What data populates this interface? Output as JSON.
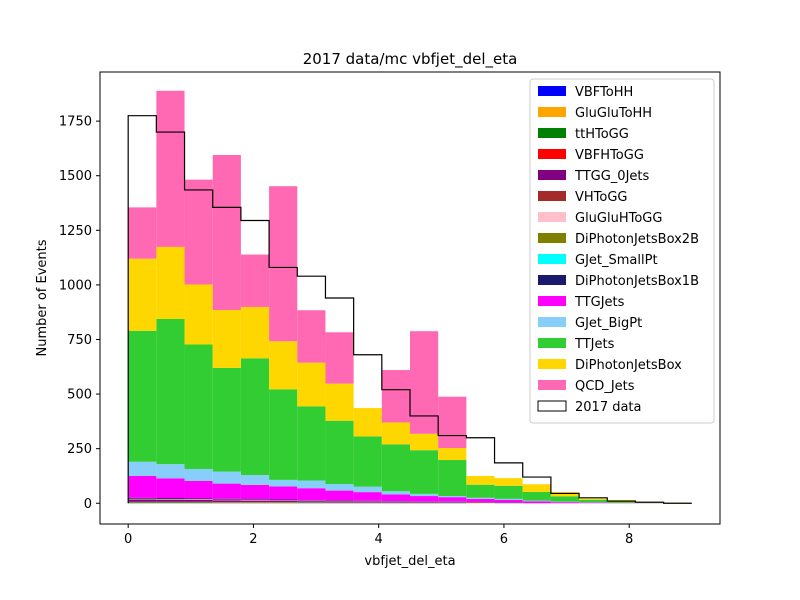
{
  "chart_data": {
    "type": "bar",
    "stacked": true,
    "title": "2017 data/mc vbfjet_del_eta",
    "xlabel": "vbfjet_del_eta",
    "ylabel": "Number of Events",
    "xlim": [
      -0.45,
      9.45
    ],
    "ylim": [
      -95,
      1975
    ],
    "xticks": [
      0,
      2,
      4,
      6,
      8
    ],
    "yticks": [
      0,
      250,
      500,
      750,
      1000,
      1250,
      1500,
      1750
    ],
    "bin_edges": [
      0.0,
      0.45,
      0.9,
      1.35,
      1.8,
      2.25,
      2.7,
      3.15,
      3.6,
      4.05,
      4.5,
      4.95,
      5.4,
      5.85,
      6.3,
      6.75,
      7.2,
      7.65,
      8.1,
      8.55,
      9.0
    ],
    "legend_position": "upper right",
    "series": [
      {
        "name": "VBFToHH",
        "color": "#0000ff",
        "values": [
          1,
          1,
          1,
          1,
          1,
          1,
          1,
          1,
          1,
          1,
          1,
          1,
          0,
          0,
          0,
          0,
          0,
          0,
          0,
          0
        ]
      },
      {
        "name": "GluGluToHH",
        "color": "#ffa500",
        "values": [
          2,
          2,
          2,
          2,
          2,
          2,
          1,
          1,
          1,
          1,
          1,
          1,
          1,
          0,
          0,
          0,
          0,
          0,
          0,
          0
        ]
      },
      {
        "name": "ttHToGG",
        "color": "#008000",
        "values": [
          3,
          3,
          3,
          2,
          2,
          2,
          2,
          1,
          1,
          1,
          1,
          1,
          1,
          1,
          0,
          0,
          0,
          0,
          0,
          0
        ]
      },
      {
        "name": "VBFHToGG",
        "color": "#ff0000",
        "values": [
          1,
          1,
          1,
          1,
          1,
          1,
          1,
          1,
          1,
          1,
          1,
          1,
          1,
          0,
          0,
          0,
          0,
          0,
          0,
          0
        ]
      },
      {
        "name": "TTGG_0Jets",
        "color": "#800080",
        "values": [
          10,
          9,
          8,
          7,
          6,
          5,
          4,
          4,
          3,
          3,
          2,
          2,
          1,
          1,
          1,
          0,
          0,
          0,
          0,
          0
        ]
      },
      {
        "name": "VHToGG",
        "color": "#a52a2a",
        "values": [
          1,
          1,
          1,
          1,
          1,
          1,
          1,
          1,
          1,
          0,
          0,
          0,
          0,
          0,
          0,
          0,
          0,
          0,
          0,
          0
        ]
      },
      {
        "name": "GluGluHToGG",
        "color": "#ffc0cb",
        "values": [
          2,
          2,
          2,
          2,
          2,
          1,
          1,
          1,
          1,
          1,
          1,
          1,
          0,
          0,
          0,
          0,
          0,
          0,
          0,
          0
        ]
      },
      {
        "name": "DiPhotonJetsBox2B",
        "color": "#808000",
        "values": [
          1,
          1,
          1,
          1,
          1,
          1,
          1,
          1,
          0,
          0,
          0,
          0,
          0,
          0,
          0,
          0,
          0,
          0,
          0,
          0
        ]
      },
      {
        "name": "GJet_SmallPt",
        "color": "#00ffff",
        "values": [
          0,
          0,
          0,
          0,
          0,
          0,
          0,
          0,
          0,
          0,
          0,
          0,
          0,
          0,
          0,
          0,
          0,
          0,
          0,
          0
        ]
      },
      {
        "name": "DiPhotonJetsBox1B",
        "color": "#191970",
        "values": [
          4,
          4,
          3,
          3,
          3,
          3,
          2,
          2,
          2,
          2,
          1,
          1,
          1,
          1,
          0,
          0,
          0,
          0,
          0,
          0
        ]
      },
      {
        "name": "TTGJets",
        "color": "#ff00ff",
        "values": [
          100,
          90,
          80,
          70,
          65,
          60,
          55,
          45,
          40,
          30,
          25,
          20,
          15,
          12,
          8,
          5,
          3,
          2,
          1,
          1
        ]
      },
      {
        "name": "GJet_BigPt",
        "color": "#87cefa",
        "values": [
          65,
          65,
          55,
          55,
          45,
          30,
          35,
          30,
          25,
          15,
          10,
          5,
          5,
          5,
          3,
          2,
          1,
          0,
          0,
          0
        ]
      },
      {
        "name": "TTJets",
        "color": "#32cd32",
        "values": [
          600,
          665,
          570,
          475,
          535,
          415,
          340,
          290,
          230,
          215,
          200,
          165,
          60,
          60,
          40,
          25,
          12,
          8,
          3,
          1
        ]
      },
      {
        "name": "DiPhotonJetsBox",
        "color": "#ffd700",
        "values": [
          330,
          330,
          275,
          265,
          235,
          220,
          200,
          170,
          130,
          100,
          75,
          55,
          40,
          35,
          35,
          20,
          5,
          5,
          3,
          1
        ]
      },
      {
        "name": "QCD_Jets",
        "color": "#ff69b4",
        "values": [
          235,
          715,
          480,
          710,
          240,
          710,
          240,
          235,
          0,
          240,
          470,
          235,
          0,
          0,
          0,
          0,
          0,
          0,
          0,
          0
        ]
      }
    ],
    "data": {
      "name": "2017 data",
      "color": "#000000",
      "values": [
        1775,
        1700,
        1435,
        1355,
        1295,
        1080,
        1040,
        940,
        680,
        520,
        400,
        310,
        300,
        185,
        120,
        45,
        25,
        10,
        5,
        0
      ]
    }
  }
}
